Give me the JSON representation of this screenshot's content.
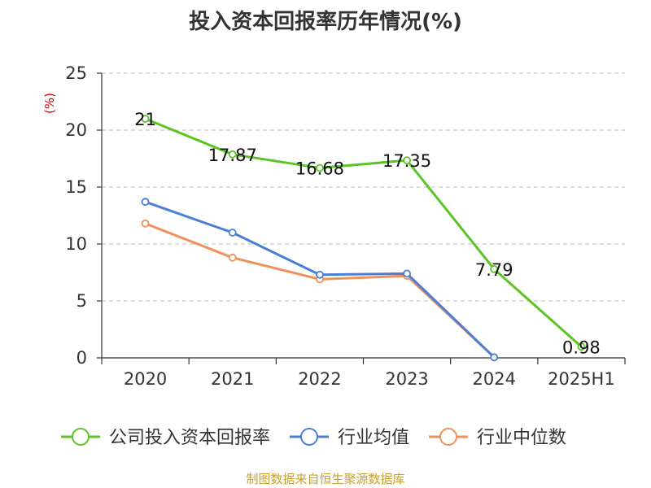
{
  "chart_data": {
    "type": "line",
    "title": "投入资本回报率历年情况(%)",
    "ylabel": "(%)",
    "xlabel": "",
    "ylim": [
      0,
      25
    ],
    "yticks": [
      0,
      5,
      10,
      15,
      20,
      25
    ],
    "grid": true,
    "legend_position": "bottom",
    "categories": [
      "2020",
      "2021",
      "2022",
      "2023",
      "2024",
      "2025H1"
    ],
    "series": [
      {
        "name": "公司投入资本回报率",
        "color": "#5cc325",
        "values": [
          21,
          17.87,
          16.68,
          17.35,
          7.79,
          0.98
        ],
        "labels": [
          "21",
          "17.87",
          "16.68",
          "17.35",
          "7.79",
          "0.98"
        ],
        "show_labels": true
      },
      {
        "name": "行业均值",
        "color": "#4a7fd8",
        "values": [
          13.7,
          11.0,
          7.3,
          7.4,
          0.05,
          null
        ],
        "show_labels": false
      },
      {
        "name": "行业中位数",
        "color": "#f0905a",
        "values": [
          11.8,
          8.8,
          6.9,
          7.2,
          0.05,
          null
        ],
        "show_labels": false
      }
    ],
    "source": "制图数据来自恒生聚源数据库"
  }
}
